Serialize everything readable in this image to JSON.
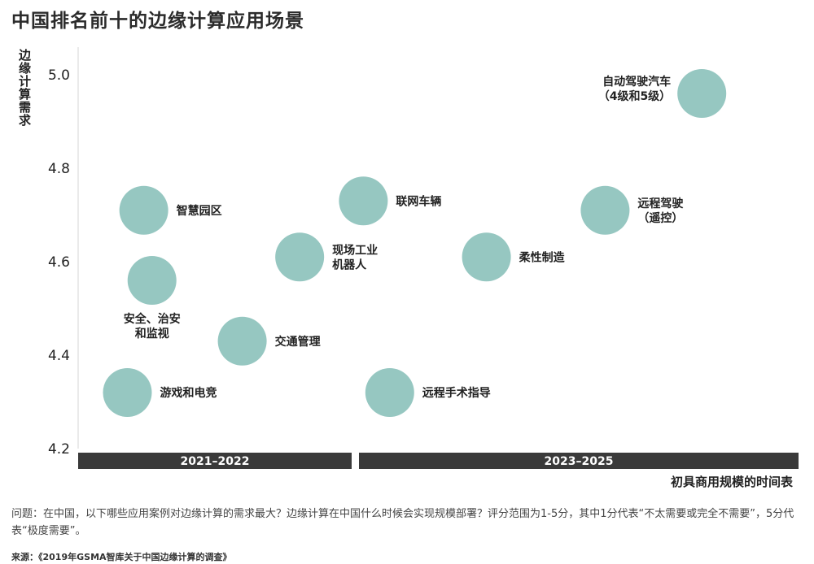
{
  "title": "中国排名前十的边缘计算应用场景",
  "note": "问题：在中国，以下哪些应用案例对边缘计算的需求最大？边缘计算在中国什么时候会实现规模部署？评分范围为1-5分，其中1分代表“不太需要或完全不需要”，5分代表“极度需要”。",
  "source": "来源：《2019年GSMA智库关于中国边缘计算的调查》",
  "chart_data": {
    "type": "scatter",
    "title": "中国排名前十的边缘计算应用场景",
    "ylabel": "边缘计算需求",
    "xlabel": "初具商用规模的时间表",
    "ylim": [
      4.2,
      5.05
    ],
    "yticks": [
      "4.2",
      "4.4",
      "4.6",
      "4.8",
      "5.0"
    ],
    "categories": [
      "2021–2022",
      "2023–2025"
    ],
    "bubble_color": "#96c7c1",
    "points": [
      {
        "label": [
          "智慧园区"
        ],
        "period": "2021–2022",
        "x": 0.24,
        "y": 4.71,
        "label_side": "right"
      },
      {
        "label": [
          "安全、治安",
          "和监视"
        ],
        "period": "2021–2022",
        "x": 0.27,
        "y": 4.56,
        "label_side": "below"
      },
      {
        "label": [
          "游戏和电竞"
        ],
        "period": "2021–2022",
        "x": 0.18,
        "y": 4.32,
        "label_side": "right"
      },
      {
        "label": [
          "交通管理"
        ],
        "period": "2021–2022",
        "x": 0.6,
        "y": 4.43,
        "label_side": "right"
      },
      {
        "label": [
          "现场工业",
          "机器人"
        ],
        "period": "2021–2022",
        "x": 0.81,
        "y": 4.61,
        "label_side": "right"
      },
      {
        "label": [
          "联网车辆"
        ],
        "period": "2023–2025",
        "x": 0.01,
        "y": 4.73,
        "label_side": "right"
      },
      {
        "label": [
          "远程手术指导"
        ],
        "period": "2023–2025",
        "x": 0.07,
        "y": 4.32,
        "label_side": "right"
      },
      {
        "label": [
          "柔性制造"
        ],
        "period": "2023–2025",
        "x": 0.29,
        "y": 4.61,
        "label_side": "right"
      },
      {
        "label": [
          "远程驾驶",
          "（遥控）"
        ],
        "period": "2023–2025",
        "x": 0.56,
        "y": 4.71,
        "label_side": "right"
      },
      {
        "label": [
          "自动驾驶汽车",
          "（4级和5级）"
        ],
        "period": "2023–2025",
        "x": 0.78,
        "y": 4.96,
        "label_side": "left"
      }
    ]
  }
}
